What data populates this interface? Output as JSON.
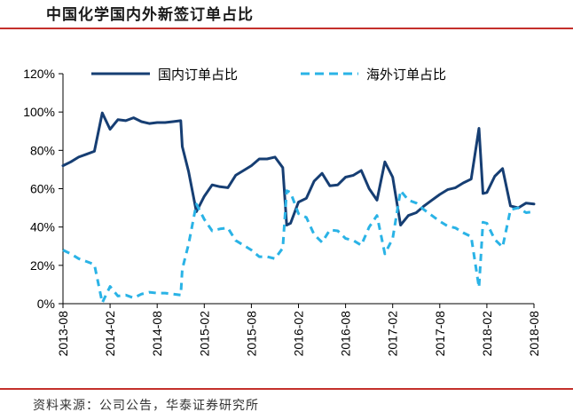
{
  "title": "中国化学国内外新签订单占比",
  "source": "资料来源：公司公告，华泰证券研究所",
  "colors": {
    "accent_rule": "#c4302b",
    "domestic": "#163e73",
    "overseas": "#2ab3e6"
  },
  "chart_data": {
    "type": "line",
    "title": "中国化学国内外新签订单占比",
    "xlabel": "",
    "ylabel": "",
    "ylim": [
      0,
      120
    ],
    "y_ticks": [
      0,
      20,
      40,
      60,
      80,
      100,
      120
    ],
    "y_tick_labels": [
      "0%",
      "20%",
      "40%",
      "60%",
      "80%",
      "100%",
      "120%"
    ],
    "x_ticks": [
      0,
      6,
      12,
      18,
      24,
      30,
      36,
      42,
      48,
      54,
      60
    ],
    "x_tick_labels": [
      "2013-08",
      "2014-02",
      "2014-08",
      "2015-02",
      "2015-08",
      "2016-02",
      "2016-08",
      "2017-02",
      "2017-08",
      "2018-02",
      "2018-08"
    ],
    "grid": false,
    "legend_position": "top",
    "series": [
      {
        "name": "国内订单占比",
        "style": "solid",
        "x": [
          0,
          1,
          2,
          3,
          4,
          5,
          6,
          7,
          8,
          9,
          10,
          11,
          12,
          13,
          14,
          15,
          15.2,
          16,
          17,
          18,
          19,
          20,
          21,
          22,
          23,
          24,
          25,
          26,
          27,
          28,
          28.5,
          29,
          30,
          31,
          32,
          33,
          34,
          35,
          36,
          37,
          38,
          39,
          40,
          41,
          42,
          43,
          44,
          45,
          46,
          47,
          48,
          49,
          50,
          51,
          52,
          53,
          53.5,
          54,
          55,
          56,
          57,
          58,
          59,
          60
        ],
        "values": [
          72,
          74,
          76.5,
          78,
          79.5,
          99.5,
          91,
          96,
          95.5,
          97,
          95,
          94,
          94.5,
          94.5,
          95,
          95.5,
          82,
          69,
          48,
          56,
          62,
          61,
          60.5,
          67,
          69.5,
          72,
          75.5,
          75.5,
          76.5,
          71,
          41,
          42,
          53,
          55,
          64,
          68,
          61.5,
          62,
          66,
          67,
          69.5,
          60,
          54,
          74,
          66,
          41,
          46,
          47.5,
          51,
          54,
          57,
          59.5,
          60.5,
          63,
          65,
          91.5,
          57.5,
          58,
          66.5,
          70.5,
          51,
          50,
          52.5,
          52
        ]
      },
      {
        "name": "海外订单占比",
        "style": "dashed",
        "x": [
          0,
          1,
          2,
          3,
          4,
          5,
          6,
          7,
          8,
          9,
          10,
          11,
          12,
          13,
          14,
          15,
          15.2,
          16,
          17,
          18,
          19,
          20,
          21,
          22,
          23,
          24,
          25,
          26,
          27,
          28,
          28.5,
          29,
          30,
          31,
          32,
          33,
          34,
          35,
          36,
          37,
          38,
          39,
          40,
          41,
          42,
          43,
          44,
          45,
          46,
          47,
          48,
          49,
          50,
          51,
          52,
          53,
          53.5,
          54,
          55,
          56,
          57,
          58,
          59,
          60
        ],
        "values": [
          28,
          26,
          23.5,
          22,
          20.5,
          0.5,
          9,
          4,
          4.5,
          3,
          5,
          6,
          5.5,
          5.5,
          5,
          4.5,
          18,
          31,
          52,
          44,
          38,
          39,
          39.5,
          33,
          30.5,
          28,
          24.5,
          24.5,
          23.5,
          29,
          59,
          58,
          47,
          45,
          36,
          32,
          38.5,
          38,
          34,
          33,
          30.5,
          40,
          46,
          26,
          34,
          59,
          54,
          52.5,
          49,
          46,
          43,
          40.5,
          39.5,
          37,
          35,
          8.5,
          42.5,
          42,
          33.5,
          29.5,
          49,
          50,
          47.5,
          48
        ]
      }
    ]
  }
}
